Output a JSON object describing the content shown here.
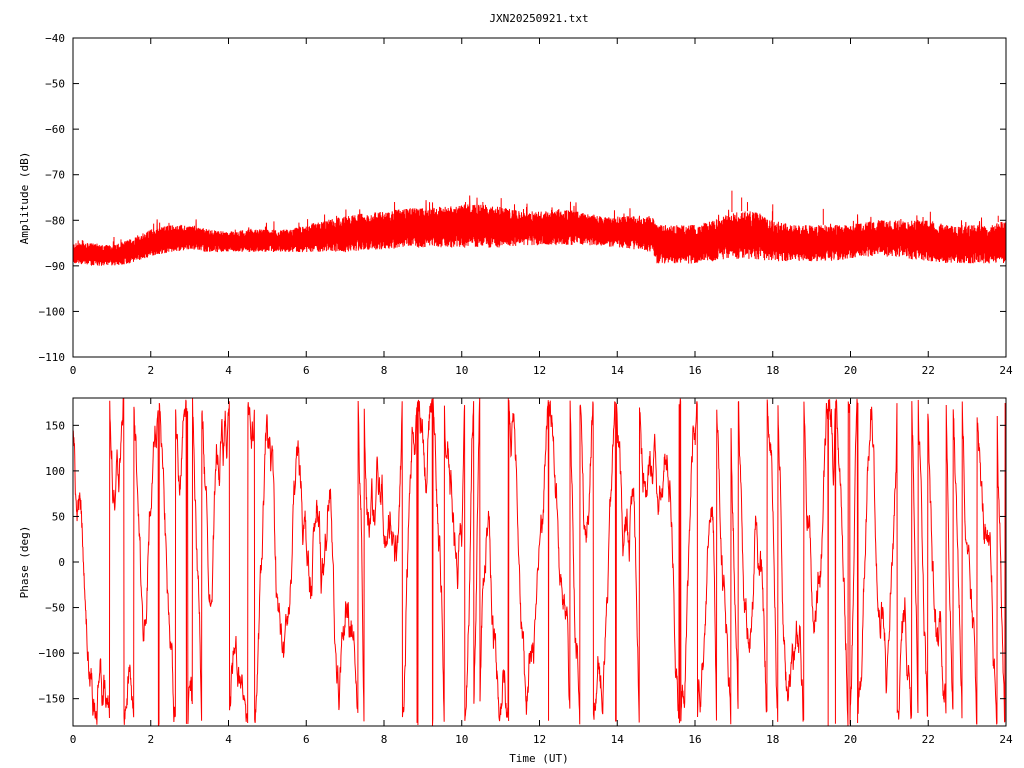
{
  "title": "JXN20250921.txt",
  "colors": {
    "series": "#ff0000",
    "axes": "#000000",
    "background": "#ffffff"
  },
  "chart_data": [
    {
      "type": "line",
      "ylabel": "Amplitude (dB)",
      "xlabel": "",
      "xlim": [
        0,
        24
      ],
      "ylim": [
        -110,
        -40
      ],
      "x_ticks": [
        0,
        2,
        4,
        6,
        8,
        10,
        12,
        14,
        16,
        18,
        20,
        22,
        24
      ],
      "y_ticks": [
        -110,
        -100,
        -90,
        -80,
        -70,
        -60,
        -50,
        -40
      ],
      "grid": false,
      "series": [
        {
          "x": [
            0,
            0.5,
            1,
            1.5,
            2,
            2.5,
            3,
            3.5,
            4,
            4.5,
            5,
            5.5,
            6,
            6.5,
            7,
            7.5,
            8,
            8.5,
            9,
            9.5,
            10,
            10.5,
            11,
            11.5,
            12,
            12.5,
            13,
            13.5,
            14,
            14.5,
            14.9,
            15.0,
            15.5,
            16,
            16.5,
            17,
            17.5,
            18,
            18.5,
            19,
            19.5,
            20,
            20.5,
            21,
            21.5,
            22,
            22.5,
            23,
            23.5,
            24
          ],
          "y_max": [
            -85,
            -85,
            -85.5,
            -84,
            -82,
            -81,
            -81,
            -82,
            -82.5,
            -82,
            -82,
            -82,
            -81,
            -80,
            -79,
            -78.5,
            -78,
            -77.5,
            -77,
            -77,
            -76.5,
            -76.5,
            -77,
            -78,
            -78,
            -77.5,
            -78,
            -79,
            -79,
            -79,
            -79,
            -81,
            -81,
            -81,
            -80,
            -78,
            -78,
            -80,
            -81,
            -81,
            -81,
            -81,
            -80,
            -80,
            -80,
            -80,
            -81,
            -81,
            -81,
            -80
          ],
          "y_min": [
            -89.5,
            -90,
            -90,
            -89.5,
            -88,
            -87,
            -86.5,
            -87,
            -87,
            -87,
            -87,
            -87,
            -87,
            -87,
            -87,
            -86.5,
            -86.5,
            -86,
            -86,
            -86,
            -86,
            -86,
            -86,
            -85.5,
            -85.5,
            -85.5,
            -85.5,
            -85.5,
            -86,
            -86.5,
            -87,
            -89.5,
            -89.5,
            -89.5,
            -89,
            -88.5,
            -88.5,
            -89,
            -89,
            -89,
            -89,
            -88.5,
            -88,
            -88,
            -88.5,
            -89,
            -89.5,
            -89.5,
            -89.5,
            -89.5
          ],
          "spikes": [
            {
              "x": 16.95,
              "y": -73.5
            },
            {
              "x": 17.2,
              "y": -75
            },
            {
              "x": 17.35,
              "y": -76
            },
            {
              "x": 18.0,
              "y": -76.5
            },
            {
              "x": 19.3,
              "y": -77.5
            },
            {
              "x": 23.8,
              "y": -79
            }
          ]
        }
      ]
    },
    {
      "type": "line",
      "ylabel": "Phase (deg)",
      "xlabel": "Time (UT)",
      "xlim": [
        0,
        24
      ],
      "ylim": [
        -180,
        180
      ],
      "x_ticks": [
        0,
        2,
        4,
        6,
        8,
        10,
        12,
        14,
        16,
        18,
        20,
        22,
        24
      ],
      "y_ticks": [
        -150,
        -100,
        -50,
        0,
        50,
        100,
        150
      ],
      "grid": false,
      "series": [
        {
          "description_of_values": "phase wraps between -180 and 180 deg throughout the day",
          "wrap_range": [
            -180,
            180
          ]
        }
      ]
    }
  ]
}
